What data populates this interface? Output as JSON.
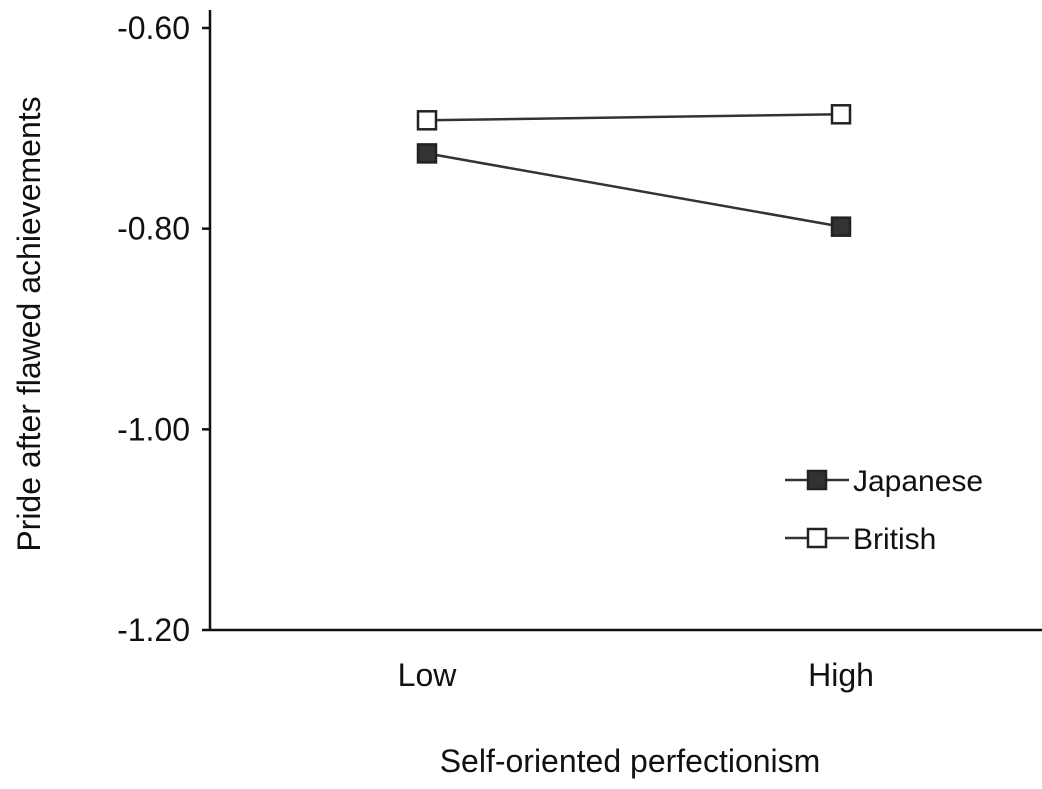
{
  "chart_data": {
    "type": "line",
    "title": "",
    "xlabel": "Self-oriented perfectionism",
    "ylabel": "Pride after flawed achievements",
    "categories": [
      "Low",
      "High"
    ],
    "ylim": [
      -1.2,
      -0.6
    ],
    "yticks": [
      "-0.60",
      "-0.80",
      "-1.00",
      "-1.20"
    ],
    "grid": false,
    "legend_position": "bottom-right",
    "series": [
      {
        "name": "Japanese",
        "values": [
          -0.725,
          -0.798
        ],
        "marker": "filled-square",
        "color": "#333333"
      },
      {
        "name": "British",
        "values": [
          -0.692,
          -0.686
        ],
        "marker": "open-square",
        "color": "#ffffff"
      }
    ]
  }
}
